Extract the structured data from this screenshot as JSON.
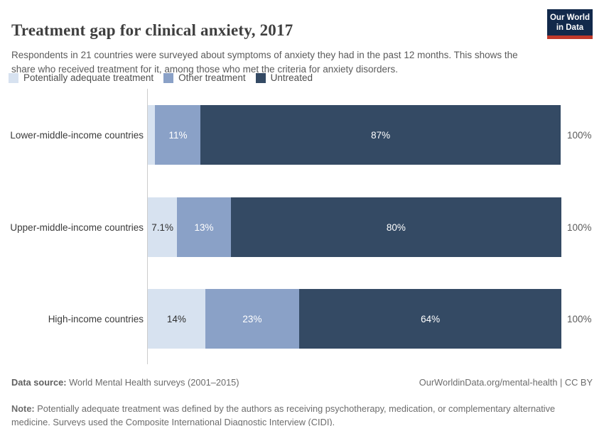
{
  "header": {
    "title": "Treatment gap for clinical anxiety, 2017",
    "subtitle": "Respondents in 21 countries were surveyed about symptoms of anxiety they had in the past 12 months. This shows the share who received treatment for it, among those who met the criteria for anxiety disorders.",
    "logo": {
      "line1": "Our World",
      "line2": "in Data",
      "bg_color": "#12294b",
      "accent_color": "#c0392b"
    }
  },
  "chart_data": {
    "type": "bar",
    "orientation": "horizontal-stacked",
    "title": "Treatment gap for clinical anxiety, 2017",
    "categories": [
      "Lower-middle-income countries",
      "Upper-middle-income countries",
      "High-income countries"
    ],
    "series": [
      {
        "name": "Potentially adequate treatment",
        "color": "#d7e2f0",
        "label_color": "#2f2f2f",
        "values": [
          1.8,
          7.1,
          14
        ],
        "labels": [
          "",
          "7.1%",
          "14%"
        ]
      },
      {
        "name": "Other treatment",
        "color": "#8aa1c7",
        "label_color": "#ffffff",
        "values": [
          11,
          13,
          23
        ],
        "labels": [
          "11%",
          "13%",
          "23%"
        ]
      },
      {
        "name": "Untreated",
        "color": "#344a64",
        "label_color": "#ffffff",
        "values": [
          87,
          80,
          64
        ],
        "labels": [
          "87%",
          "80%",
          "64%"
        ]
      }
    ],
    "totals": [
      "100%",
      "100%",
      "100%"
    ],
    "xlim": [
      0,
      100
    ],
    "legend_position": "top",
    "grid": false
  },
  "footer": {
    "data_source_label": "Data source:",
    "data_source_value": " World Mental Health surveys (2001–2015)",
    "link": "OurWorldinData.org/mental-health | CC BY",
    "note_label": "Note:",
    "note_value": " Potentially adequate treatment was defined by the authors as receiving psychotherapy, medication, or complementary alternative medicine. Surveys used the Composite International Diagnostic Interview (CIDI)."
  },
  "colors": {
    "axis_line": "#cccccc",
    "title_text": "#3f3f3f",
    "subtitle_text": "#5b5b5b",
    "category_label_text": "#3b3b3b",
    "total_label_text": "#5b5b5b",
    "footer_text": "#6c6c6c"
  }
}
